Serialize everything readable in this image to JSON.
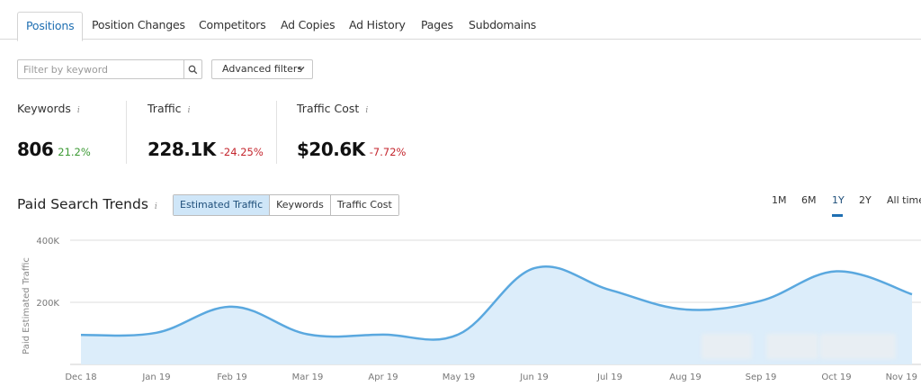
{
  "tabs": [
    {
      "label": "Positions",
      "active": true
    },
    {
      "label": "Position Changes"
    },
    {
      "label": "Competitors"
    },
    {
      "label": "Ad Copies"
    },
    {
      "label": "Ad History"
    },
    {
      "label": "Pages"
    },
    {
      "label": "Subdomains"
    }
  ],
  "filters": {
    "search_placeholder": "Filter by keyword",
    "advanced_label": "Advanced filters"
  },
  "metrics": {
    "keywords": {
      "label": "Keywords",
      "value": "806",
      "delta": "21.2%",
      "delta_color": "#3c9a34"
    },
    "traffic": {
      "label": "Traffic",
      "value": "228.1K",
      "delta": "-24.25%",
      "delta_color": "#c4262e"
    },
    "traffic_cost": {
      "label": "Traffic Cost",
      "value": "$20.6K",
      "delta": "-7.72%",
      "delta_color": "#c4262e"
    },
    "info_glyph": "i"
  },
  "trends": {
    "title": "Paid Search Trends",
    "info_glyph": "i",
    "segments": [
      {
        "label": "Estimated Traffic",
        "active": true
      },
      {
        "label": "Keywords"
      },
      {
        "label": "Traffic Cost"
      }
    ],
    "ranges": [
      {
        "label": "1M"
      },
      {
        "label": "6M"
      },
      {
        "label": "1Y",
        "active": true
      },
      {
        "label": "2Y"
      },
      {
        "label": "All time"
      }
    ]
  },
  "chart_data": {
    "type": "area",
    "ylabel": "Paid Estimated Traffic",
    "yticks": [
      "400K",
      "200K"
    ],
    "ytick_values": [
      400000,
      200000
    ],
    "ylim": [
      0,
      400000
    ],
    "categories": [
      "Dec 18",
      "Jan 19",
      "Feb 19",
      "Mar 19",
      "Apr 19",
      "May 19",
      "Jun 19",
      "Jul 19",
      "Aug 19",
      "Sep 19",
      "Oct 19",
      "Nov 19"
    ],
    "series": [
      {
        "values": [
          95000,
          102000,
          186000,
          97000,
          96000,
          97000,
          310000,
          240000,
          177000,
          205000,
          300000,
          226000
        ]
      }
    ],
    "line_color": "#5aa8df",
    "fill_color": "#dcedfa",
    "grid": true
  }
}
